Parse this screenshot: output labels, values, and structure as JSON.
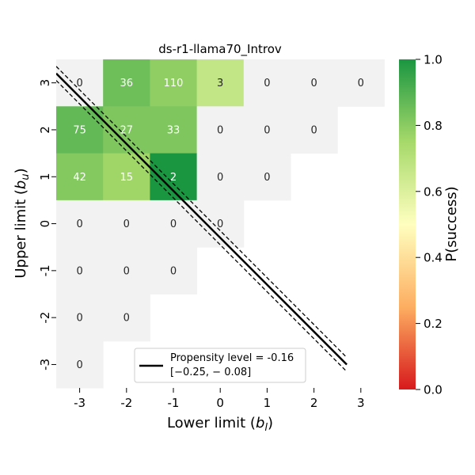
{
  "chart_data": {
    "type": "heatmap",
    "title": "ds-r1-llama70_Introv",
    "xlabel_main": "Lower limit (",
    "xlabel_var": "b",
    "xlabel_sub": "l",
    "xlabel_end": ")",
    "ylabel_main": "Upper limit (",
    "ylabel_var": "b",
    "ylabel_sub": "u",
    "ylabel_end": ")",
    "x_ticks": [
      "-3",
      "-2",
      "-1",
      "0",
      "1",
      "2",
      "3"
    ],
    "y_ticks": [
      "3",
      "2",
      "1",
      "0",
      "-1",
      "-2",
      "-3"
    ],
    "xlim": [
      -3,
      3
    ],
    "ylim": [
      -3,
      3
    ],
    "cells": [
      {
        "x": -3,
        "y": 3,
        "label": "0",
        "p": null
      },
      {
        "x": -2,
        "y": 3,
        "label": "36",
        "p": 0.85
      },
      {
        "x": -1,
        "y": 3,
        "label": "110",
        "p": 0.79
      },
      {
        "x": 0,
        "y": 3,
        "label": "3",
        "p": 0.67
      },
      {
        "x": 1,
        "y": 3,
        "label": "0",
        "p": null
      },
      {
        "x": 2,
        "y": 3,
        "label": "0",
        "p": null
      },
      {
        "x": 3,
        "y": 3,
        "label": "0",
        "p": null
      },
      {
        "x": -3,
        "y": 2,
        "label": "75",
        "p": 0.87
      },
      {
        "x": -2,
        "y": 2,
        "label": "27",
        "p": 0.82
      },
      {
        "x": -1,
        "y": 2,
        "label": "33",
        "p": 0.82
      },
      {
        "x": 0,
        "y": 2,
        "label": "0",
        "p": null
      },
      {
        "x": 1,
        "y": 2,
        "label": "0",
        "p": null
      },
      {
        "x": 2,
        "y": 2,
        "label": "0",
        "p": null
      },
      {
        "x": -3,
        "y": 1,
        "label": "42",
        "p": 0.81
      },
      {
        "x": -2,
        "y": 1,
        "label": "15",
        "p": 0.76
      },
      {
        "x": -1,
        "y": 1,
        "label": "2",
        "p": 1.0
      },
      {
        "x": 0,
        "y": 1,
        "label": "0",
        "p": null
      },
      {
        "x": 1,
        "y": 1,
        "label": "0",
        "p": null
      },
      {
        "x": -3,
        "y": 0,
        "label": "0",
        "p": null
      },
      {
        "x": -2,
        "y": 0,
        "label": "0",
        "p": null
      },
      {
        "x": -1,
        "y": 0,
        "label": "0",
        "p": null
      },
      {
        "x": 0,
        "y": 0,
        "label": "0",
        "p": null
      },
      {
        "x": -3,
        "y": -1,
        "label": "0",
        "p": null
      },
      {
        "x": -2,
        "y": -1,
        "label": "0",
        "p": null
      },
      {
        "x": -1,
        "y": -1,
        "label": "0",
        "p": null
      },
      {
        "x": -3,
        "y": -2,
        "label": "0",
        "p": null
      },
      {
        "x": -2,
        "y": -2,
        "label": "0",
        "p": null
      },
      {
        "x": -3,
        "y": -3,
        "label": "0",
        "p": null
      }
    ],
    "propensity_line": {
      "start": {
        "x": -3.5,
        "y": 3.2
      },
      "end": {
        "x": 2.7,
        "y": -3.0
      },
      "offset_upper": 0.15,
      "offset_lower": -0.15
    },
    "legend": {
      "line1": "Propensity level = -0.16",
      "line2": "[−0.25, − 0.08]",
      "placement": "bottom-center"
    },
    "colorbar": {
      "label": "P(success)",
      "ticks": [
        "0.0",
        "0.2",
        "0.4",
        "0.6",
        "0.8",
        "1.0"
      ],
      "range": [
        0,
        1
      ],
      "colormap": [
        "#d7191c",
        "#fdae61",
        "#ffffbf",
        "#a6d96a",
        "#1a9641"
      ]
    },
    "empty_cell_color": "#f2f2f2"
  }
}
